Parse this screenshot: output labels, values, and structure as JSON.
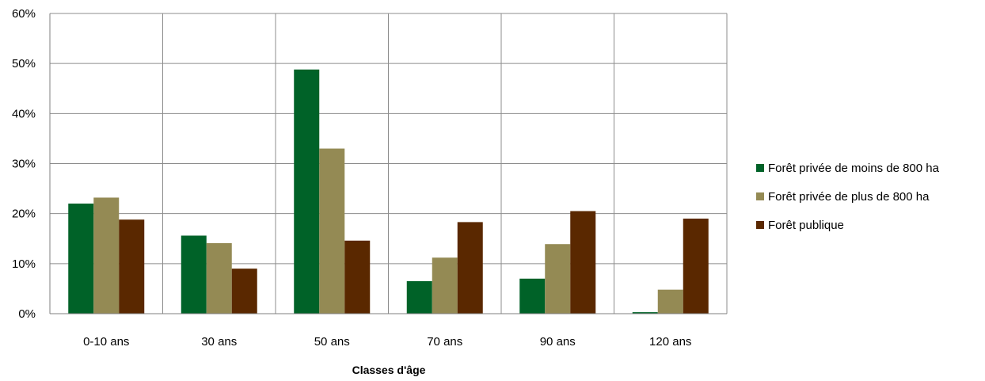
{
  "chart_data": {
    "type": "bar",
    "title": "",
    "xlabel": "Classes d'âge",
    "ylabel": "",
    "ylim": [
      0,
      60
    ],
    "ytick_step": 10,
    "ytick_suffix": "%",
    "grid": true,
    "legend_position": "right",
    "categories": [
      "0-10 ans",
      "30 ans",
      "50 ans",
      "70 ans",
      "90 ans",
      "120 ans"
    ],
    "series": [
      {
        "name": "Forêt privée de moins de 800 ha",
        "color": "#006228",
        "values": [
          22,
          15.6,
          48.8,
          6.5,
          7,
          0.3
        ]
      },
      {
        "name": "Forêt privée de plus de 800 ha",
        "color": "#948A54",
        "values": [
          23.2,
          14.1,
          33,
          11.2,
          13.9,
          4.8
        ]
      },
      {
        "name": "Forêt publique",
        "color": "#5A2800",
        "values": [
          18.8,
          9,
          14.6,
          18.3,
          20.5,
          19
        ]
      }
    ]
  }
}
